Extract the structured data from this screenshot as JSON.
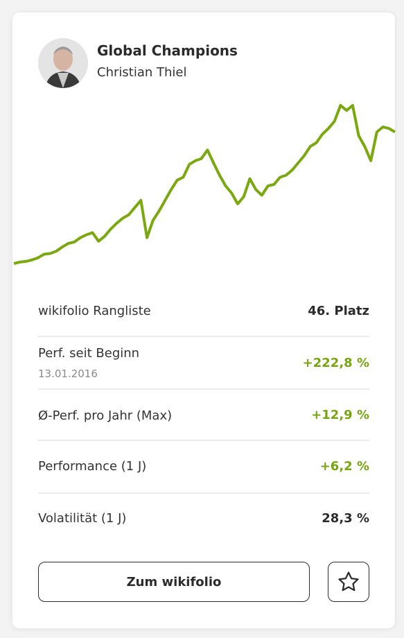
{
  "header": {
    "title": "Global Champions",
    "subtitle": "Christian Thiel"
  },
  "chart_data": {
    "type": "line",
    "color": "#7aa90f",
    "values": [
      100,
      102.4,
      103.5,
      105.9,
      109.4,
      115.3,
      116.5,
      120.1,
      127.1,
      133,
      135.4,
      142.5,
      147.2,
      150.7,
      136.6,
      144.8,
      156.6,
      166.1,
      174.3,
      180.2,
      192,
      203.8,
      142.5,
      170.8,
      186.1,
      203.8,
      221.5,
      236.9,
      241.6,
      262.8,
      268.7,
      272.3,
      286.4,
      265.2,
      245.1,
      227.4,
      215.6,
      197.9,
      209.7,
      239.2,
      221.5,
      212.1,
      227.4,
      229.8,
      241.6,
      245.1,
      253.4,
      265.2,
      277,
      292.3,
      298.2,
      312.4,
      321.8,
      333.6,
      359.6,
      351.3,
      359.6,
      310,
      292.3,
      268.7,
      315.9,
      324.2,
      321.8,
      315.9
    ]
  },
  "stats": {
    "rows": [
      {
        "label": "wikifolio Rangliste",
        "value": "46. Platz"
      },
      {
        "label": "Perf. seit Beginn",
        "sublabel": "13.01.2016",
        "value": "+222,8 %"
      },
      {
        "label": "Ø-Perf. pro Jahr (Max)",
        "value": "+12,9 %"
      },
      {
        "label": "Performance (1 J)",
        "value": "+6,2 %"
      },
      {
        "label": "Volatilität (1 J)",
        "value": "28,3 %"
      }
    ]
  },
  "buttons": {
    "primary": "Zum wikifolio"
  }
}
